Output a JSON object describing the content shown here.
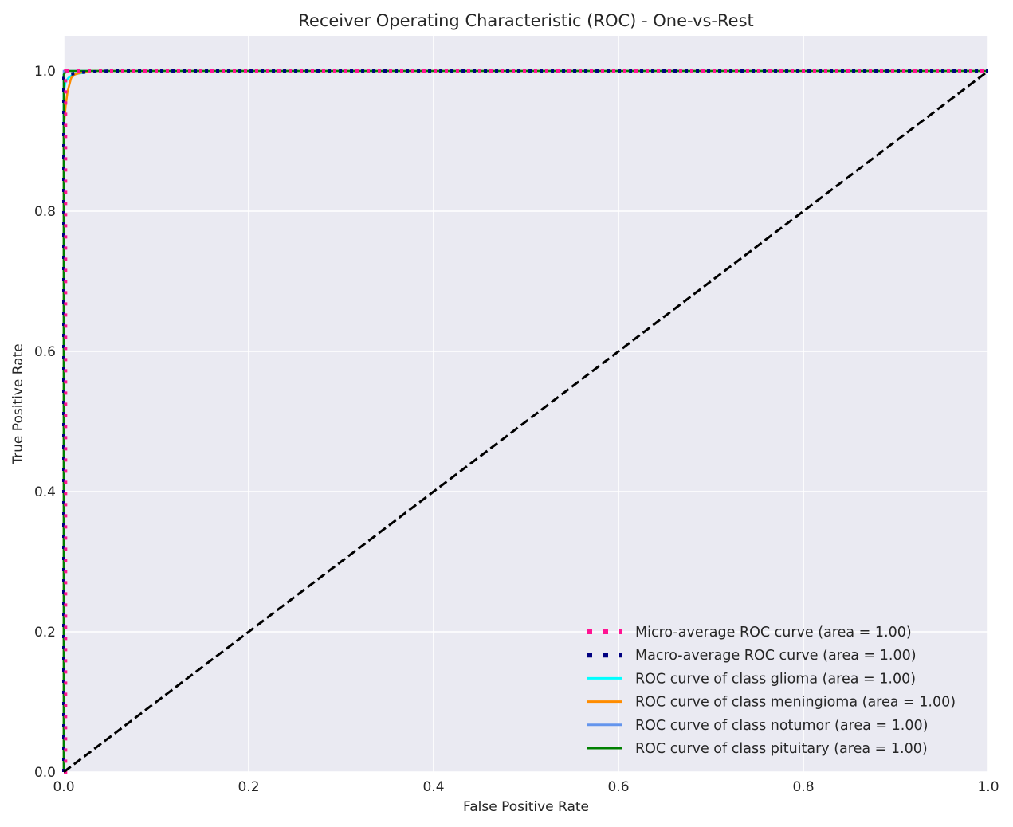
{
  "chart_data": {
    "type": "line",
    "title": "Receiver Operating Characteristic (ROC) - One-vs-Rest",
    "xlabel": "False Positive Rate",
    "ylabel": "True Positive Rate",
    "xlim": [
      0.0,
      1.0
    ],
    "ylim": [
      0.0,
      1.05
    ],
    "xticks": [
      "0.0",
      "0.2",
      "0.4",
      "0.6",
      "0.8",
      "1.0"
    ],
    "yticks": [
      "0.0",
      "0.2",
      "0.4",
      "0.6",
      "0.8",
      "1.0"
    ],
    "grid": true,
    "legend_position": "lower-right",
    "series": [
      {
        "name": "Micro-average ROC curve (area = 1.00)",
        "color": "#ff1493",
        "style": "dotted",
        "x": [
          0.0,
          0.002,
          0.002,
          0.01,
          0.05,
          0.2,
          0.5,
          1.0
        ],
        "y": [
          0.0,
          0.0,
          1.0,
          1.0,
          1.0,
          1.0,
          1.0,
          1.0
        ]
      },
      {
        "name": "Macro-average ROC curve (area = 1.00)",
        "color": "#000080",
        "style": "dotted",
        "x": [
          0.0,
          0.0,
          0.005,
          0.02,
          0.05,
          0.2,
          0.5,
          1.0
        ],
        "y": [
          0.0,
          0.99,
          0.995,
          0.998,
          1.0,
          1.0,
          1.0,
          1.0
        ]
      },
      {
        "name": "ROC curve of class glioma (area = 1.00)",
        "color": "#00ffff",
        "style": "solid",
        "x": [
          0.0,
          0.0,
          0.002,
          0.005,
          0.01,
          0.02,
          0.03,
          1.0
        ],
        "y": [
          0.0,
          0.97,
          0.985,
          0.99,
          0.995,
          0.997,
          1.0,
          1.0
        ]
      },
      {
        "name": "ROC curve of class meningioma (area = 1.00)",
        "color": "#ff8c00",
        "style": "solid",
        "x": [
          0.0,
          0.0,
          0.002,
          0.004,
          0.006,
          0.008,
          0.012,
          0.02,
          0.03,
          1.0
        ],
        "y": [
          0.0,
          0.92,
          0.95,
          0.97,
          0.98,
          0.99,
          0.995,
          0.998,
          1.0,
          1.0
        ]
      },
      {
        "name": "ROC curve of class notumor (area = 1.00)",
        "color": "#6495ed",
        "style": "solid",
        "x": [
          0.0,
          0.0,
          1.0
        ],
        "y": [
          0.0,
          1.0,
          1.0
        ]
      },
      {
        "name": "ROC curve of class pituitary (area = 1.00)",
        "color": "#008000",
        "style": "solid",
        "x": [
          0.0,
          0.0,
          0.003,
          1.0
        ],
        "y": [
          0.0,
          0.995,
          1.0,
          1.0
        ]
      }
    ],
    "reference_line": {
      "color": "#000000",
      "style": "dashed",
      "x": [
        0.0,
        1.0
      ],
      "y": [
        0.0,
        1.0
      ]
    }
  }
}
